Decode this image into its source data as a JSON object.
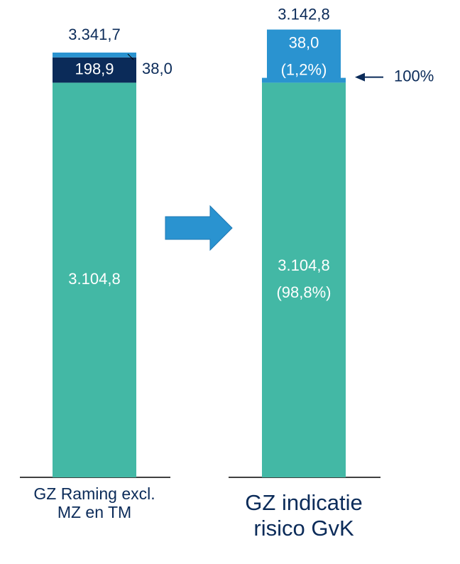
{
  "chart_data": {
    "type": "stacked-bar",
    "categories": [
      "GZ Raming excl. MZ en TM",
      "GZ indicatie risico GvK"
    ],
    "series": [
      {
        "color": "#43b8a5",
        "values": [
          3104.8,
          3104.8
        ],
        "value_labels": [
          "3.104,8",
          "3.104,8"
        ],
        "shares": [
          null,
          98.8
        ],
        "share_labels": [
          null,
          "(98,8%)"
        ]
      },
      {
        "color": "#0b2b59",
        "values": [
          198.9,
          null
        ],
        "value_labels": [
          "198,9",
          null
        ]
      },
      {
        "color": "#2a93d0",
        "values": [
          38.0,
          38.0
        ],
        "value_labels": [
          "38,0",
          "38,0"
        ],
        "shares": [
          null,
          1.2
        ],
        "share_labels": [
          null,
          "(1,2%)"
        ]
      }
    ],
    "totals": [
      3341.7,
      3142.8
    ],
    "total_labels": [
      "3.341,7",
      "3.142,8"
    ],
    "annotation": "100%"
  }
}
